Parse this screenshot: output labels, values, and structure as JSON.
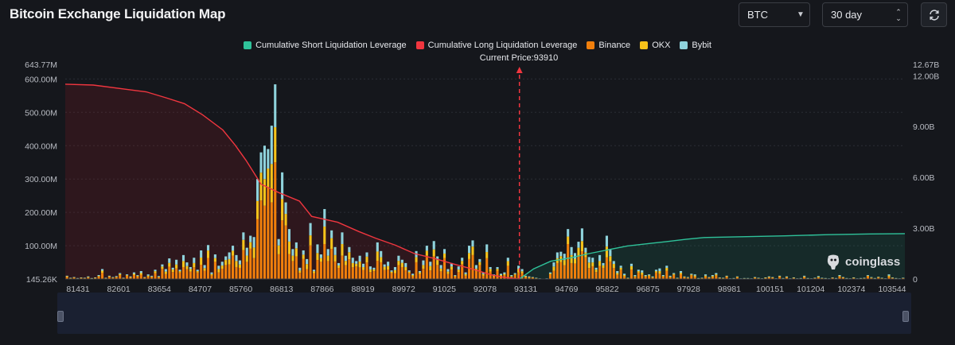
{
  "header": {
    "title": "Bitcoin Exchange Liquidation Map",
    "coin_select": "BTC",
    "range_select": "30 day"
  },
  "icons": {
    "refresh": "refresh-icon",
    "chevron": "chevron-down-icon",
    "stepper": "up-down-stepper-icon",
    "logo": "coinglass-logo-icon"
  },
  "watermark": "coinglass",
  "colors": {
    "short_line": "#2fc29a",
    "long_line": "#f0363f",
    "binance": "#f07f0c",
    "okx": "#f7c31a",
    "bybit": "#8fd3dc",
    "current_price_marker": "#f0363f"
  },
  "legend": [
    {
      "label": "Cumulative Short Liquidation Leverage",
      "color": "#2fc29a"
    },
    {
      "label": "Cumulative Long Liquidation Leverage",
      "color": "#f0363f"
    },
    {
      "label": "Binance",
      "color": "#f07f0c"
    },
    {
      "label": "OKX",
      "color": "#f7c31a"
    },
    {
      "label": "Bybit",
      "color": "#8fd3dc"
    }
  ],
  "current_price_label": "Current Price:93910",
  "chart_data": {
    "type": "bar",
    "title": "Bitcoin Exchange Liquidation Map",
    "current_price": 93910,
    "x_range": [
      81431,
      104500
    ],
    "x_ticks": [
      "81431",
      "82601",
      "83654",
      "84707",
      "85760",
      "86813",
      "87866",
      "88919",
      "89972",
      "91025",
      "92078",
      "93131",
      "94769",
      "95822",
      "96875",
      "97928",
      "98981",
      "100151",
      "101204",
      "102374",
      "103544"
    ],
    "y_left": {
      "min": 145260,
      "max": 643770000,
      "tick_labels": [
        "145.26K",
        "100.00M",
        "200.00M",
        "300.00M",
        "400.00M",
        "500.00M",
        "600.00M",
        "643.77M"
      ],
      "tick_values": [
        145260,
        100000000,
        200000000,
        300000000,
        400000000,
        500000000,
        600000000,
        643770000
      ]
    },
    "y_right": {
      "min": 0,
      "max": 12670000000,
      "tick_labels": [
        "0",
        "3.00B",
        "6.00B",
        "9.00B",
        "12.00B",
        "12.67B"
      ],
      "tick_values": [
        0,
        3000000000,
        6000000000,
        9000000000,
        12000000000,
        12670000000
      ]
    },
    "stack_order": [
      "Binance",
      "OKX",
      "Bybit"
    ],
    "bars_total_M": [
      10,
      4,
      6,
      3,
      5,
      4,
      8,
      3,
      5,
      12,
      30,
      4,
      10,
      6,
      9,
      18,
      4,
      14,
      8,
      20,
      12,
      24,
      6,
      14,
      10,
      28,
      9,
      44,
      30,
      62,
      34,
      58,
      28,
      72,
      50,
      36,
      64,
      28,
      86,
      42,
      102,
      20,
      74,
      40,
      52,
      68,
      80,
      100,
      72,
      56,
      140,
      94,
      130,
      126,
      300,
      380,
      400,
      390,
      460,
      584,
      120,
      320,
      230,
      150,
      90,
      110,
      34,
      86,
      60,
      168,
      28,
      104,
      74,
      210,
      90,
      146,
      96,
      48,
      140,
      70,
      96,
      64,
      54,
      70,
      46,
      80,
      38,
      34,
      110,
      84,
      44,
      52,
      26,
      36,
      70,
      58,
      48,
      26,
      16,
      84,
      24,
      56,
      100,
      52,
      114,
      68,
      42,
      90,
      30,
      48,
      12,
      38,
      64,
      20,
      100,
      116,
      42,
      60,
      20,
      104,
      36,
      14,
      36,
      16,
      20,
      64,
      12,
      18,
      40,
      30,
      10,
      8,
      6,
      4,
      2,
      1,
      2,
      20,
      50,
      80,
      82,
      76,
      150,
      96,
      78,
      112,
      152,
      94,
      66,
      64,
      34,
      72,
      48,
      130,
      88,
      54,
      24,
      40,
      16,
      4,
      46,
      12,
      28,
      26,
      12,
      14,
      8,
      28,
      32,
      12,
      40,
      10,
      18,
      4,
      24,
      8,
      6,
      16,
      14,
      3,
      4,
      14,
      6,
      12,
      18,
      5,
      4,
      10,
      2,
      3,
      8,
      2,
      3,
      3,
      2,
      6,
      4,
      2,
      5,
      8,
      6,
      2,
      10,
      3,
      8,
      2,
      5,
      2,
      3,
      10,
      3,
      2,
      4,
      9,
      4,
      3,
      2,
      5,
      3,
      12,
      6,
      3,
      2,
      5,
      2,
      3,
      4,
      12,
      6,
      3,
      7,
      4,
      2,
      14,
      5,
      3,
      2,
      4
    ],
    "series": [
      {
        "name": "Cumulative Long Liquidation Leverage",
        "axis": "right",
        "x": [
          81431,
          82200,
          83100,
          83654,
          84200,
          84707,
          85200,
          85760,
          86100,
          86400,
          86813,
          87300,
          87866,
          88200,
          88919,
          89500,
          89972,
          90500,
          91025,
          91600,
          92078,
          92600,
          93131,
          93500,
          93910
        ],
        "y_B": [
          11.5,
          11.45,
          11.2,
          11.05,
          10.7,
          10.35,
          9.7,
          8.8,
          7.9,
          7.0,
          5.6,
          5.1,
          4.6,
          3.7,
          3.35,
          2.8,
          2.4,
          2.0,
          1.5,
          1.2,
          0.9,
          0.6,
          0.25,
          0.1,
          0.0
        ]
      },
      {
        "name": "Cumulative Short Liquidation Leverage",
        "axis": "right",
        "x": [
          93910,
          94300,
          94769,
          95300,
          95822,
          96400,
          96875,
          97500,
          97928,
          98500,
          98981,
          100151,
          101204,
          102374,
          103544,
          104500
        ],
        "y_B": [
          0.0,
          0.6,
          1.05,
          1.25,
          1.5,
          1.75,
          1.95,
          2.1,
          2.2,
          2.35,
          2.45,
          2.5,
          2.55,
          2.62,
          2.66,
          2.68
        ]
      }
    ],
    "grid": true
  }
}
